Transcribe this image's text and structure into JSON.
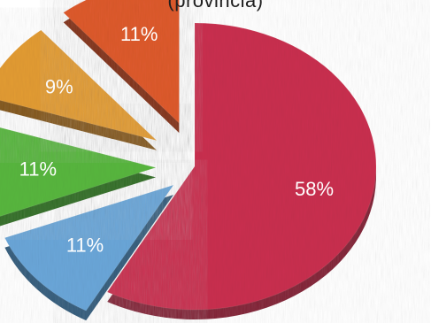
{
  "chart_data": {
    "type": "pie",
    "subtitle": "(provincia)",
    "slices": [
      {
        "label": "58%",
        "value": 58,
        "color": "#c9304f",
        "side_color": "#7e1d31",
        "exploded": false
      },
      {
        "label": "11%",
        "value": 11,
        "color": "#6aa6d8",
        "side_color": "#2f5878",
        "exploded": true
      },
      {
        "label": "11%",
        "value": 11,
        "color": "#58b63f",
        "side_color": "#2e6a22",
        "exploded": true
      },
      {
        "label": "9%",
        "value": 9,
        "color": "#e29b33",
        "side_color": "#7f5216",
        "exploded": true
      },
      {
        "label": "11%",
        "value": 11,
        "color": "#dd5a2d",
        "side_color": "#7f2f16",
        "exploded": true
      }
    ]
  }
}
